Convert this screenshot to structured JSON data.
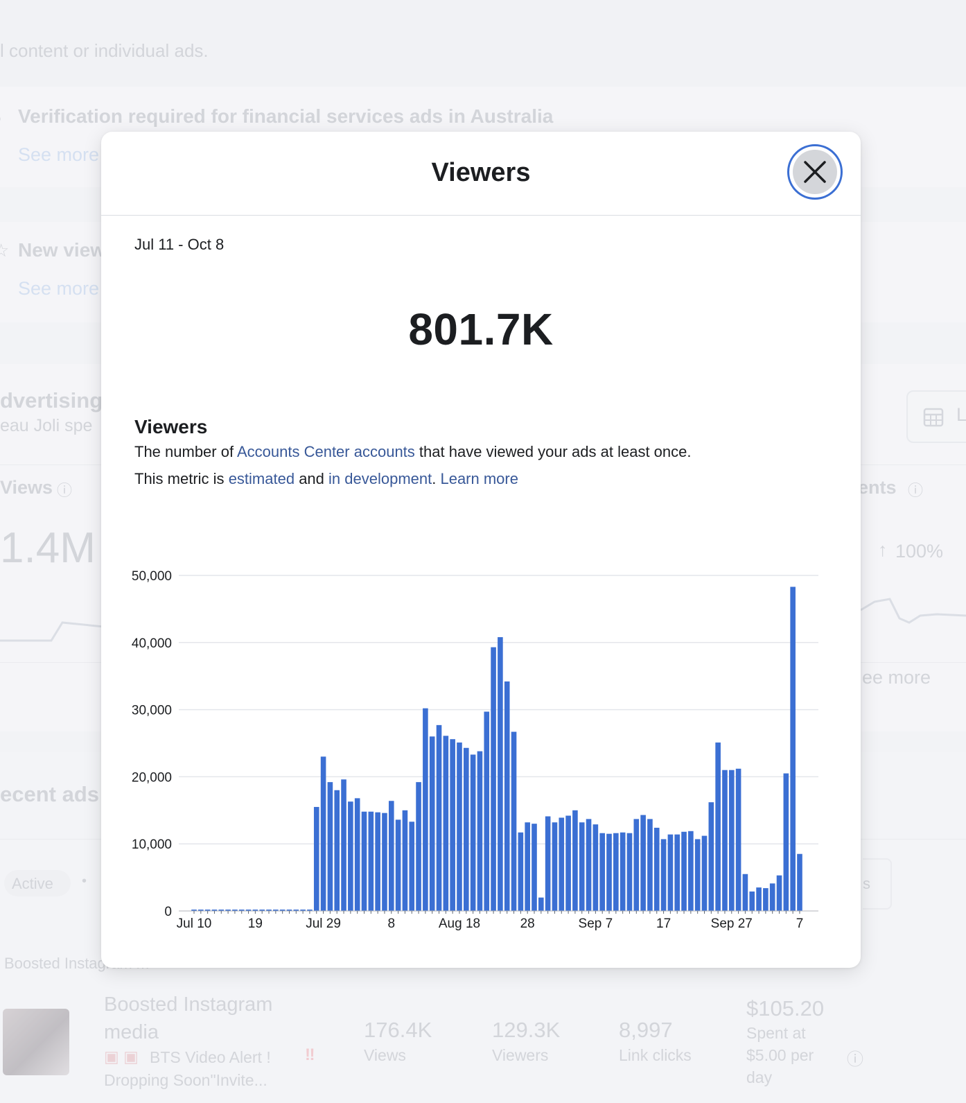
{
  "background": {
    "notice_top": "l content or individual ads.",
    "notice_1_title": "Verification required for financial services ads in Australia",
    "notice_1_link": "See more",
    "notice_2_title": "New view",
    "notice_2_link": "See more",
    "section_title": "dvertising",
    "section_sub": "eau Joli spe",
    "views_label": "Views",
    "views_value": "1.4M",
    "right_metric_label": "ents",
    "right_metric_change": "100%",
    "right_see_more": "ee more",
    "right_button_text": "L",
    "recent_ads_title": "ecent ads",
    "filter_active": "Active",
    "row_type": "Boosted Instagram m",
    "ad_title_1": "Boosted Instagram",
    "ad_title_2": "media",
    "ad_caption_1": "BTS Video Alert !",
    "ad_caption_2": "Dropping Soon\"Invite...",
    "stat_views_value": "176.4K",
    "stat_views_label": "Views",
    "stat_viewers_value": "129.3K",
    "stat_viewers_label": "Viewers",
    "stat_clicks_value": "8,997",
    "stat_clicks_label": "Link clicks",
    "stat_spent_value": "$105.20",
    "stat_spent_l1": "Spent at",
    "stat_spent_l2": "$5.00 per",
    "stat_spent_l3": "day",
    "stat_side_fragment": "s"
  },
  "modal": {
    "title": "Viewers",
    "date_range": "Jul 11 - Oct 8",
    "total": "801.7K",
    "section_heading": "Viewers",
    "desc1_pre": "The number of ",
    "desc1_link": "Accounts Center accounts",
    "desc1_post": " that have viewed your ads at least once.",
    "desc2_pre": "This metric is ",
    "desc2_link1": "estimated",
    "desc2_mid": " and ",
    "desc2_link2": "in development",
    "desc2_dot": ". ",
    "desc2_link3": "Learn more"
  },
  "colors": {
    "bar": "#3b6fd3",
    "link": "#385898",
    "grid": "#e4e6eb"
  },
  "chart_data": {
    "type": "bar",
    "title": "Viewers",
    "ylim": [
      0,
      50000
    ],
    "y_ticks": [
      0,
      10000,
      20000,
      30000,
      40000,
      50000
    ],
    "y_tick_labels": [
      "0",
      "10,000",
      "20,000",
      "30,000",
      "40,000",
      "50,000"
    ],
    "x_tick_labels": [
      {
        "day": 0,
        "label": "Jul 10"
      },
      {
        "day": 9,
        "label": "19"
      },
      {
        "day": 19,
        "label": "Jul 29"
      },
      {
        "day": 29,
        "label": "8"
      },
      {
        "day": 39,
        "label": "Aug 18"
      },
      {
        "day": 49,
        "label": "28"
      },
      {
        "day": 59,
        "label": "Sep 7"
      },
      {
        "day": 69,
        "label": "17"
      },
      {
        "day": 79,
        "label": "Sep 27"
      },
      {
        "day": 89,
        "label": "7"
      }
    ],
    "start_day": 0,
    "values": [
      0,
      0,
      0,
      0,
      0,
      0,
      0,
      0,
      0,
      0,
      0,
      0,
      0,
      0,
      0,
      0,
      0,
      0,
      15500,
      23000,
      19200,
      18000,
      19600,
      16300,
      16800,
      14800,
      14800,
      14700,
      14600,
      16400,
      13600,
      15000,
      13300,
      19200,
      30200,
      26000,
      27700,
      26100,
      25600,
      25100,
      24300,
      23300,
      23800,
      29700,
      39300,
      40800,
      34200,
      26700,
      11700,
      13200,
      13000,
      2000,
      14100,
      13200,
      13900,
      14200,
      15000,
      13200,
      13700,
      12900,
      11600,
      11500,
      11600,
      11700,
      11600,
      13700,
      14300,
      13700,
      12400,
      10700,
      11400,
      11400,
      11800,
      11900,
      10700,
      11200,
      16200,
      25100,
      21000,
      21000,
      21200,
      5500,
      2900,
      3500,
      3400,
      4100,
      5300,
      20500,
      48300,
      8500
    ]
  }
}
